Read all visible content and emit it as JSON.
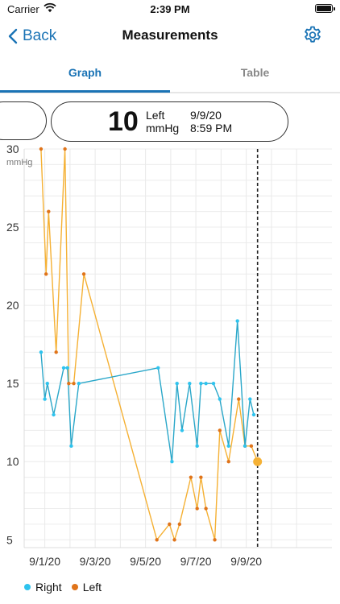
{
  "status_bar": {
    "carrier": "Carrier",
    "time": "2:39 PM"
  },
  "nav": {
    "back_label": "Back",
    "title": "Measurements"
  },
  "tabs": [
    {
      "label": "Graph",
      "active": true
    },
    {
      "label": "Table",
      "active": false
    }
  ],
  "reading": {
    "value": "10",
    "side": "Left",
    "unit": "mmHg",
    "date": "9/9/20",
    "time": "8:59 PM"
  },
  "colors": {
    "accent": "#1a73b5",
    "right_series": "#2aa7c9",
    "left_series": "#f5b135",
    "left_dots": "#e0741a"
  },
  "chart_data": {
    "type": "line",
    "ylabel": "mmHg",
    "ylim": [
      4.5,
      30
    ],
    "yticks": [
      5,
      10,
      15,
      20,
      25,
      30
    ],
    "xlim": [
      0,
      11.2
    ],
    "x_tick_values": [
      0.5,
      2.5,
      4.5,
      6.5,
      8.5
    ],
    "x_tick_labels": [
      "9/1/20",
      "9/3/20",
      "9/5/20",
      "9/7/20",
      "9/9/20"
    ],
    "cursor_x": 8.95,
    "selected_point": {
      "x": 8.95,
      "y": 10
    },
    "legend": [
      "Right",
      "Left"
    ],
    "series": [
      {
        "name": "Right",
        "points": [
          [
            0.35,
            17
          ],
          [
            0.5,
            14
          ],
          [
            0.6,
            15
          ],
          [
            0.85,
            13
          ],
          [
            1.25,
            16
          ],
          [
            1.4,
            16
          ],
          [
            1.55,
            11
          ],
          [
            1.85,
            15
          ],
          [
            5.0,
            16
          ],
          [
            5.55,
            10
          ],
          [
            5.75,
            15
          ],
          [
            5.95,
            12
          ],
          [
            6.25,
            15
          ],
          [
            6.55,
            11
          ],
          [
            6.7,
            15
          ],
          [
            6.9,
            15
          ],
          [
            7.2,
            15
          ],
          [
            7.45,
            14
          ],
          [
            7.8,
            11
          ],
          [
            8.15,
            19
          ],
          [
            8.45,
            11
          ],
          [
            8.65,
            14
          ],
          [
            8.8,
            13
          ]
        ]
      },
      {
        "name": "Left",
        "points": [
          [
            0.35,
            30
          ],
          [
            0.55,
            22
          ],
          [
            0.65,
            26
          ],
          [
            0.95,
            17
          ],
          [
            1.3,
            30
          ],
          [
            1.45,
            15
          ],
          [
            1.65,
            15
          ],
          [
            2.05,
            22
          ],
          [
            4.95,
            5
          ],
          [
            5.45,
            6
          ],
          [
            5.65,
            5
          ],
          [
            5.85,
            6
          ],
          [
            6.3,
            9
          ],
          [
            6.55,
            7
          ],
          [
            6.7,
            9
          ],
          [
            6.9,
            7
          ],
          [
            7.25,
            5
          ],
          [
            7.45,
            12
          ],
          [
            7.8,
            10
          ],
          [
            8.2,
            14
          ],
          [
            8.45,
            11
          ],
          [
            8.7,
            11
          ],
          [
            8.95,
            10
          ]
        ]
      }
    ]
  }
}
